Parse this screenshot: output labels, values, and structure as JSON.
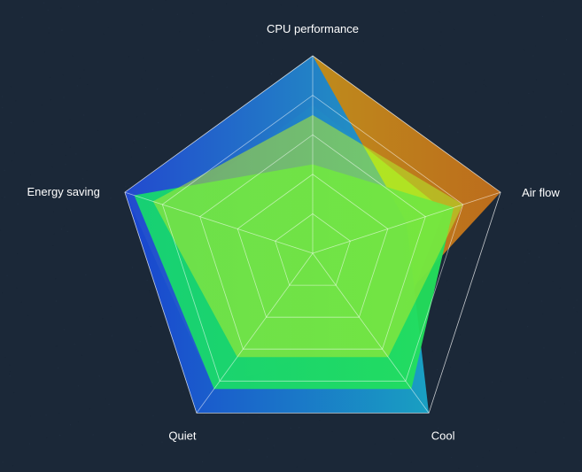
{
  "chart_data": {
    "type": "radar",
    "indicators": [
      {
        "name": "CPU performance",
        "max": 100
      },
      {
        "name": "Air flow",
        "max": 100
      },
      {
        "name": "Cool",
        "max": 100
      },
      {
        "name": "Quiet",
        "max": 100
      },
      {
        "name": "Energy saving",
        "max": 100
      }
    ],
    "series": [
      {
        "values": [
          100,
          100,
          50,
          85,
          100
        ],
        "gradient": [
          "#c9b11a",
          "#c5701a"
        ]
      },
      {
        "values": [
          75,
          70,
          65,
          65,
          75
        ],
        "gradient": [
          "#a9e81a",
          "#a9e81a"
        ]
      },
      {
        "values": [
          100,
          50,
          100,
          100,
          100
        ],
        "gradient": [
          "#1a45d8",
          "#19a6c9"
        ]
      },
      {
        "values": [
          45,
          75,
          85,
          85,
          95
        ],
        "gradient": [
          "#16d76f",
          "#24e05a"
        ]
      },
      {
        "values": [
          70,
          80,
          65,
          65,
          85
        ],
        "gradient": [
          "#b4ec2a",
          "#b4ec2a"
        ]
      }
    ],
    "split_number": 5,
    "grid_color": "#ffffff",
    "title": "",
    "legend": "none"
  }
}
